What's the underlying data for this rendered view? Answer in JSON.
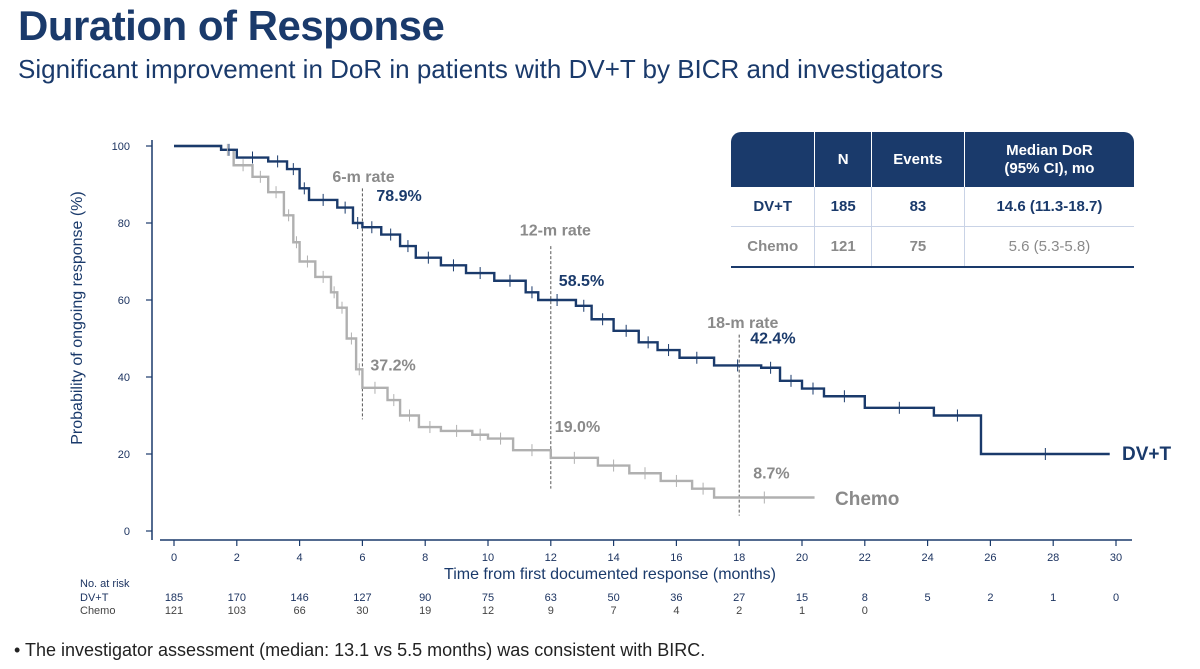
{
  "header": {
    "title": "Duration of Response",
    "subtitle": "Significant improvement in DoR in patients with DV+T by BICR and investigators"
  },
  "summary_table": {
    "headers": [
      "",
      "N",
      "Events",
      "Median DoR\n(95% CI), mo"
    ],
    "rows": [
      {
        "arm": "DV+T",
        "n": "185",
        "events": "83",
        "median": "14.6 (11.3-18.7)"
      },
      {
        "arm": "Chemo",
        "n": "121",
        "events": "75",
        "median": "5.6 (5.3-5.8)"
      }
    ]
  },
  "footnote": "• The investigator assessment (median: 13.1 vs 5.5 months) was consistent with BIRC.",
  "colors": {
    "dvt": "#1a3a6b",
    "chemo": "#b0b0b0",
    "label_gray": "#8a8a8a"
  },
  "chart_data": {
    "type": "line",
    "xlabel": "Time from first documented response (months)",
    "ylabel": "Probability of ongoing response (%)",
    "xlim": [
      0,
      30
    ],
    "ylim": [
      0,
      100
    ],
    "xticks": [
      0,
      2,
      4,
      6,
      8,
      10,
      12,
      14,
      16,
      18,
      20,
      22,
      24,
      26,
      28,
      30
    ],
    "yticks": [
      0,
      20,
      40,
      60,
      80,
      100
    ],
    "series": [
      {
        "name": "DV+T",
        "color": "#1a3a6b",
        "x": [
          0,
          1.5,
          2,
          3,
          3.6,
          4,
          4.3,
          5.2,
          5.7,
          6,
          6.6,
          7.2,
          7.7,
          8.5,
          9.3,
          10.2,
          11.2,
          11.6,
          12.8,
          13.3,
          14,
          14.8,
          15.4,
          16.1,
          17.2,
          18.7,
          19.3,
          20,
          20.7,
          22,
          24.2,
          25.7,
          29.8
        ],
        "y": [
          100,
          99,
          97,
          96,
          94,
          89,
          86,
          84,
          80,
          78.9,
          77,
          74,
          71,
          69,
          67,
          65,
          62,
          60,
          58.5,
          55,
          52,
          49,
          47,
          45,
          43,
          42.4,
          39,
          37,
          35,
          32,
          30,
          20,
          20
        ]
      },
      {
        "name": "Chemo",
        "color": "#b0b0b0",
        "x": [
          0,
          1.5,
          1.9,
          2.5,
          3,
          3.5,
          3.8,
          4,
          4.5,
          5,
          5.2,
          5.5,
          5.8,
          6,
          6.8,
          7.2,
          7.8,
          8.5,
          9.5,
          10,
          10.8,
          12,
          13.5,
          14.5,
          15.5,
          16.5,
          17.2,
          20.4
        ],
        "y": [
          100,
          99,
          95,
          92,
          88,
          82,
          75,
          70,
          66,
          62,
          58,
          50,
          42,
          37.2,
          34,
          30,
          27,
          26,
          25,
          24,
          21,
          19,
          17,
          15,
          13,
          11,
          8.7,
          8.7
        ]
      }
    ],
    "annotations": [
      {
        "text": "6-m rate",
        "x": 6,
        "y": 92
      },
      {
        "text": "12-m rate",
        "x": 12,
        "y": 78
      },
      {
        "text": "18-m rate",
        "x": 18,
        "y": 54
      },
      {
        "text": "78.9%",
        "x": 6,
        "y": 78.9,
        "series": "DV+T"
      },
      {
        "text": "37.2%",
        "x": 6,
        "y": 37.2,
        "series": "Chemo"
      },
      {
        "text": "58.5%",
        "x": 12,
        "y": 58.5,
        "series": "DV+T"
      },
      {
        "text": "19.0%",
        "x": 12,
        "y": 19.0,
        "series": "Chemo"
      },
      {
        "text": "42.4%",
        "x": 18,
        "y": 42.4,
        "series": "DV+T"
      },
      {
        "text": "8.7%",
        "x": 18,
        "y": 8.7,
        "series": "Chemo"
      }
    ],
    "risk_table": {
      "title": "No. at risk",
      "times": [
        0,
        2,
        4,
        6,
        8,
        10,
        12,
        14,
        16,
        18,
        20,
        22,
        24,
        26,
        28,
        30
      ],
      "rows": [
        {
          "label": "DV+T",
          "values": [
            "185",
            "170",
            "146",
            "127",
            "90",
            "75",
            "63",
            "50",
            "36",
            "27",
            "15",
            "8",
            "5",
            "2",
            "1",
            "0"
          ]
        },
        {
          "label": "Chemo",
          "values": [
            "121",
            "103",
            "66",
            "30",
            "19",
            "12",
            "9",
            "7",
            "4",
            "2",
            "1",
            "0",
            "",
            "",
            "",
            ""
          ]
        }
      ]
    }
  }
}
